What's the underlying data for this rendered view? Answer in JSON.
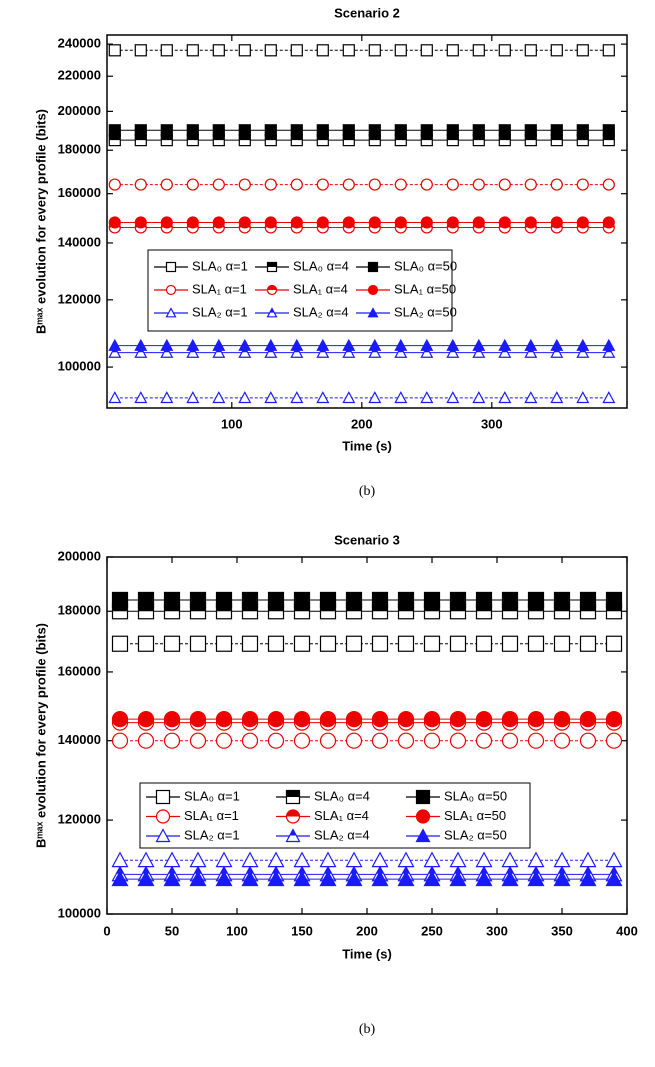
{
  "chart_data": [
    {
      "type": "line",
      "title": "Scenario 2",
      "xlabel": "Time (s)",
      "ylabel": "Bᵐᵃˣ evolution for every profile (bits)",
      "caption": "(b)",
      "xlim": [
        4,
        404
      ],
      "xticks": [
        100,
        200,
        300
      ],
      "ylim": [
        89500,
        246000
      ],
      "log": true,
      "yticks": [
        100000,
        120000,
        140000,
        160000,
        180000,
        200000,
        220000,
        240000
      ],
      "x": [
        10,
        30,
        50,
        70,
        90,
        110,
        130,
        150,
        170,
        190,
        210,
        230,
        250,
        270,
        290,
        310,
        330,
        350,
        370,
        390
      ],
      "series": [
        {
          "name": "SLA₀ α=1",
          "color": "#000000",
          "marker": "square",
          "fill": "open",
          "values": [
            236000,
            236000,
            236000,
            236000,
            236000,
            236000,
            236000,
            236000,
            236000,
            236000,
            236000,
            236000,
            236000,
            236000,
            236000,
            236000,
            236000,
            236000,
            236000,
            236000
          ]
        },
        {
          "name": "SLA₀ α=4",
          "color": "#000000",
          "marker": "square",
          "fill": "half",
          "values": [
            185000,
            185000,
            185000,
            185000,
            185000,
            185000,
            185000,
            185000,
            185000,
            185000,
            185000,
            185000,
            185000,
            185000,
            185000,
            185000,
            185000,
            185000,
            185000,
            185000
          ]
        },
        {
          "name": "SLA₀ α=50",
          "color": "#000000",
          "marker": "square",
          "fill": "full",
          "values": [
            190000,
            190000,
            190000,
            190000,
            190000,
            190000,
            190000,
            190000,
            190000,
            190000,
            190000,
            190000,
            190000,
            190000,
            190000,
            190000,
            190000,
            190000,
            190000,
            190000
          ]
        },
        {
          "name": "SLA₁ α=1",
          "color": "#ee0000",
          "marker": "circle",
          "fill": "open",
          "values": [
            164000,
            164000,
            164000,
            164000,
            164000,
            164000,
            164000,
            164000,
            164000,
            164000,
            164000,
            164000,
            164000,
            164000,
            164000,
            164000,
            164000,
            164000,
            164000,
            164000
          ]
        },
        {
          "name": "SLA₁ α=4",
          "color": "#ee0000",
          "marker": "circle",
          "fill": "half",
          "values": [
            146000,
            146000,
            146000,
            146000,
            146000,
            146000,
            146000,
            146000,
            146000,
            146000,
            146000,
            146000,
            146000,
            146000,
            146000,
            146000,
            146000,
            146000,
            146000,
            146000
          ]
        },
        {
          "name": "SLA₁ α=50",
          "color": "#ee0000",
          "marker": "circle",
          "fill": "full",
          "values": [
            148000,
            148000,
            148000,
            148000,
            148000,
            148000,
            148000,
            148000,
            148000,
            148000,
            148000,
            148000,
            148000,
            148000,
            148000,
            148000,
            148000,
            148000,
            148000,
            148000
          ]
        },
        {
          "name": "SLA₂ α=1",
          "color": "#1a1aff",
          "marker": "triangle",
          "fill": "open",
          "values": [
            92000,
            92000,
            92000,
            92000,
            92000,
            92000,
            92000,
            92000,
            92000,
            92000,
            92000,
            92000,
            92000,
            92000,
            92000,
            92000,
            92000,
            92000,
            92000,
            92000
          ]
        },
        {
          "name": "SLA₂ α=4",
          "color": "#1a1aff",
          "marker": "triangle",
          "fill": "half",
          "values": [
            104000,
            104000,
            104000,
            104000,
            104000,
            104000,
            104000,
            104000,
            104000,
            104000,
            104000,
            104000,
            104000,
            104000,
            104000,
            104000,
            104000,
            104000,
            104000,
            104000
          ]
        },
        {
          "name": "SLA₂ α=50",
          "color": "#1a1aff",
          "marker": "triangle",
          "fill": "full",
          "values": [
            106000,
            106000,
            106000,
            106000,
            106000,
            106000,
            106000,
            106000,
            106000,
            106000,
            106000,
            106000,
            106000,
            106000,
            106000,
            106000,
            106000,
            106000,
            106000,
            106000
          ]
        }
      ]
    },
    {
      "type": "line",
      "title": "Scenario 3",
      "xlabel": "Time (s)",
      "ylabel": "Bᵐᵃˣ evolution for every profile (bits)",
      "caption": "(b)",
      "xlim": [
        0,
        400
      ],
      "xticks": [
        0,
        50,
        100,
        150,
        200,
        250,
        300,
        350,
        400
      ],
      "ylim": [
        100000,
        200000
      ],
      "log": true,
      "yticks": [
        100000,
        120000,
        140000,
        160000,
        180000,
        200000
      ],
      "x": [
        10,
        30,
        50,
        70,
        90,
        110,
        130,
        150,
        170,
        190,
        210,
        230,
        250,
        270,
        290,
        310,
        330,
        350,
        370,
        390
      ],
      "series": [
        {
          "name": "SLA₀ α=1",
          "color": "#000000",
          "marker": "square",
          "fill": "open",
          "values": [
            169000,
            169000,
            169000,
            169000,
            169000,
            169000,
            169000,
            169000,
            169000,
            169000,
            169000,
            169000,
            169000,
            169000,
            169000,
            169000,
            169000,
            169000,
            169000,
            169000
          ]
        },
        {
          "name": "SLA₀ α=4",
          "color": "#000000",
          "marker": "square",
          "fill": "half",
          "values": [
            180000,
            180000,
            180000,
            180000,
            180000,
            180000,
            180000,
            180000,
            180000,
            180000,
            180000,
            180000,
            180000,
            180000,
            180000,
            180000,
            180000,
            180000,
            180000,
            180000
          ]
        },
        {
          "name": "SLA₀ α=50",
          "color": "#000000",
          "marker": "square",
          "fill": "full",
          "values": [
            184000,
            184000,
            184000,
            184000,
            184000,
            184000,
            184000,
            184000,
            184000,
            184000,
            184000,
            184000,
            184000,
            184000,
            184000,
            184000,
            184000,
            184000,
            184000,
            184000
          ]
        },
        {
          "name": "SLA₁ α=1",
          "color": "#ee0000",
          "marker": "circle",
          "fill": "open",
          "values": [
            140000,
            140000,
            140000,
            140000,
            140000,
            140000,
            140000,
            140000,
            140000,
            140000,
            140000,
            140000,
            140000,
            140000,
            140000,
            140000,
            140000,
            140000,
            140000,
            140000
          ]
        },
        {
          "name": "SLA₁ α=4",
          "color": "#ee0000",
          "marker": "circle",
          "fill": "half",
          "values": [
            145000,
            145000,
            145000,
            145000,
            145000,
            145000,
            145000,
            145000,
            145000,
            145000,
            145000,
            145000,
            145000,
            145000,
            145000,
            145000,
            145000,
            145000,
            145000,
            145000
          ]
        },
        {
          "name": "SLA₁ α=50",
          "color": "#ee0000",
          "marker": "circle",
          "fill": "full",
          "values": [
            146000,
            146000,
            146000,
            146000,
            146000,
            146000,
            146000,
            146000,
            146000,
            146000,
            146000,
            146000,
            146000,
            146000,
            146000,
            146000,
            146000,
            146000,
            146000,
            146000
          ]
        },
        {
          "name": "SLA₂ α=1",
          "color": "#1a1aff",
          "marker": "triangle",
          "fill": "open",
          "values": [
            111000,
            111000,
            111000,
            111000,
            111000,
            111000,
            111000,
            111000,
            111000,
            111000,
            111000,
            111000,
            111000,
            111000,
            111000,
            111000,
            111000,
            111000,
            111000,
            111000
          ]
        },
        {
          "name": "SLA₂ α=4",
          "color": "#1a1aff",
          "marker": "triangle",
          "fill": "half",
          "values": [
            108000,
            108000,
            108000,
            108000,
            108000,
            108000,
            108000,
            108000,
            108000,
            108000,
            108000,
            108000,
            108000,
            108000,
            108000,
            108000,
            108000,
            108000,
            108000,
            108000
          ]
        },
        {
          "name": "SLA₂ α=50",
          "color": "#1a1aff",
          "marker": "triangle",
          "fill": "full",
          "values": [
            107000,
            107000,
            107000,
            107000,
            107000,
            107000,
            107000,
            107000,
            107000,
            107000,
            107000,
            107000,
            107000,
            107000,
            107000,
            107000,
            107000,
            107000,
            107000,
            107000
          ]
        }
      ]
    }
  ]
}
